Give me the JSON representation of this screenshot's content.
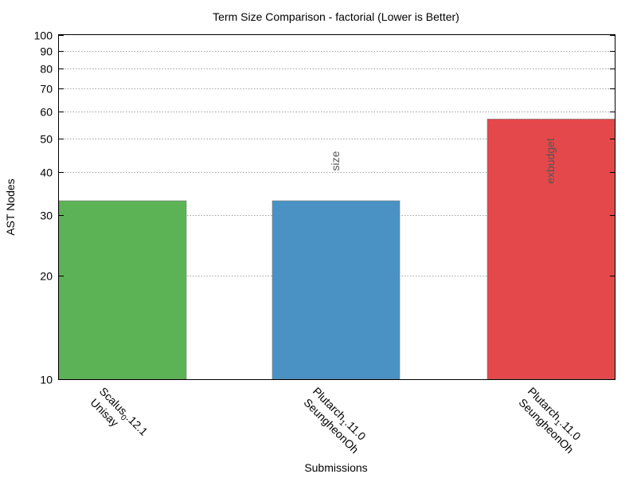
{
  "chart_data": {
    "type": "bar",
    "title": "Term Size Comparison - factorial (Lower is Better)",
    "xlabel": "Submissions",
    "ylabel": "AST Nodes",
    "yscale": "log",
    "ylim": [
      10,
      100
    ],
    "yticks": [
      10,
      20,
      30,
      40,
      50,
      60,
      70,
      80,
      90,
      100
    ],
    "grid": true,
    "categories": [
      {
        "line1": "Scalus_0.12.1",
        "line2": "Unisay"
      },
      {
        "line1": "Plutarch_1.11.0",
        "line2": "SeungheonOh"
      },
      {
        "line1": "Plutarch_1.11.0",
        "line2": "SeungheonOh"
      }
    ],
    "values": [
      33,
      33,
      57
    ],
    "colors": [
      "#5cb356",
      "#4a92c4",
      "#e5484a"
    ],
    "bar_labels": [
      "",
      "size",
      "exbudget"
    ]
  }
}
